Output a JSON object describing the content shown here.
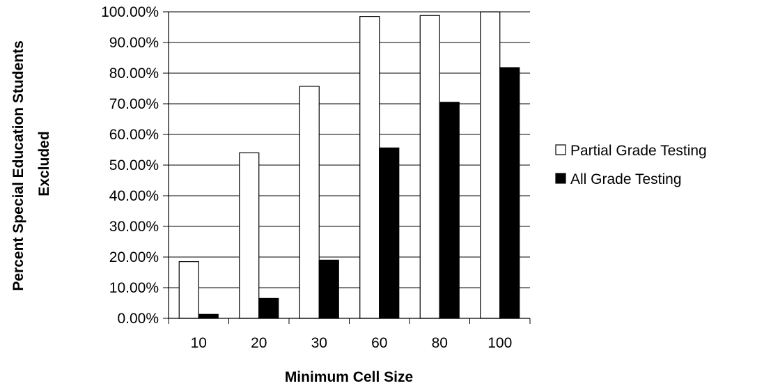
{
  "chart_data": {
    "type": "bar",
    "title": "",
    "xlabel": "Minimum Cell Size",
    "ylabel_lines": [
      "Percent Special Education Students",
      "Excluded"
    ],
    "categories": [
      "10",
      "20",
      "30",
      "60",
      "80",
      "100"
    ],
    "ylim": [
      0,
      100
    ],
    "y_ticks": [
      0,
      10,
      20,
      30,
      40,
      50,
      60,
      70,
      80,
      90,
      100
    ],
    "y_tick_labels": [
      "0.00%",
      "10.00%",
      "20.00%",
      "30.00%",
      "40.00%",
      "50.00%",
      "60.00%",
      "70.00%",
      "80.00%",
      "90.00%",
      "100.00%"
    ],
    "grid": "horizontal",
    "legend_position": "right",
    "series": [
      {
        "name": "Partial Grade Testing",
        "color": "#ffffff",
        "values": [
          18.5,
          54.0,
          75.7,
          98.5,
          98.8,
          100.0
        ]
      },
      {
        "name": "All Grade Testing",
        "color": "#000000",
        "values": [
          1.3,
          6.5,
          19.0,
          55.6,
          70.5,
          81.8
        ]
      }
    ]
  }
}
